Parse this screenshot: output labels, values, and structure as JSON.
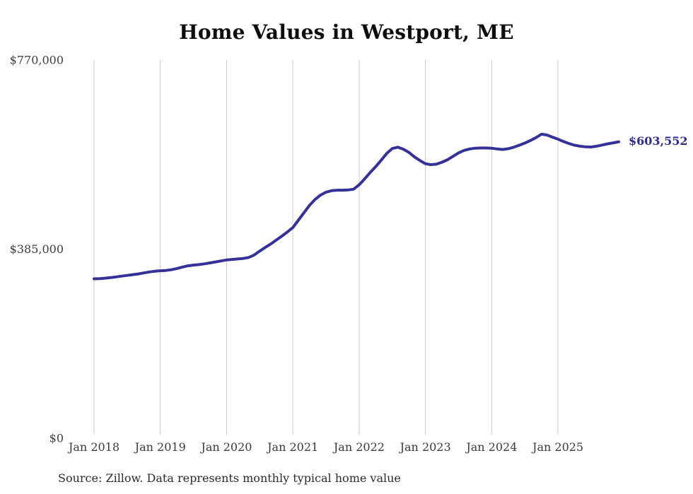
{
  "title": "Home Values in Westport, ME",
  "source_note": "Source: Zillow. Data represents monthly typical home value",
  "end_label": "$603,552",
  "colors": {
    "line": "#34319b",
    "end_label": "#2e2a96",
    "grid": "#cccccc",
    "title": "#0d0d0d",
    "axis_label": "#3d3d3d",
    "source": "#2b2b2b",
    "background": "#ffffff"
  },
  "chart_data": {
    "type": "line",
    "title": "Home Values in Westport, ME",
    "xlabel": "",
    "ylabel": "",
    "x_unit": "month",
    "x_range_note": "monthly points from Jan 2018 through Dec 2025",
    "ylim": [
      0,
      770000
    ],
    "y_ticks": [
      0,
      385000,
      770000
    ],
    "y_tick_labels": [
      "$0",
      "$385,000",
      "$770,000"
    ],
    "x_tick_indices": [
      0,
      12,
      24,
      36,
      48,
      60,
      72,
      84
    ],
    "x_tick_labels": [
      "Jan 2018",
      "Jan 2019",
      "Jan 2020",
      "Jan 2021",
      "Jan 2022",
      "Jan 2023",
      "Jan 2024",
      "Jan 2025"
    ],
    "grid": "vertical-only",
    "legend": "none",
    "last_value": 603552,
    "last_value_label": "$603,552",
    "series": [
      {
        "name": "Typical home value",
        "values": [
          324500,
          325000,
          325800,
          327000,
          328500,
          330000,
          331500,
          333000,
          334500,
          336500,
          338500,
          340000,
          341000,
          341500,
          343000,
          345500,
          348500,
          351000,
          352500,
          353500,
          355000,
          357000,
          359000,
          361000,
          363000,
          364000,
          365000,
          366000,
          368000,
          373000,
          381000,
          388500,
          395500,
          403500,
          411500,
          420000,
          429000,
          444000,
          459000,
          474000,
          486000,
          495000,
          501000,
          504000,
          505000,
          505000,
          505500,
          507000,
          516000,
          528000,
          541000,
          553000,
          566000,
          580000,
          590000,
          592500,
          588500,
          582000,
          573000,
          565500,
          559000,
          557000,
          558000,
          562000,
          567000,
          574000,
          581000,
          586000,
          589000,
          590500,
          591000,
          591000,
          590500,
          589000,
          588000,
          589500,
          592500,
          596500,
          601000,
          606000,
          612000,
          619000,
          617500,
          613000,
          609000,
          604000,
          600000,
          596500,
          594500,
          593200,
          593000,
          594500,
          597000,
          599500,
          601500,
          603552
        ]
      }
    ]
  }
}
